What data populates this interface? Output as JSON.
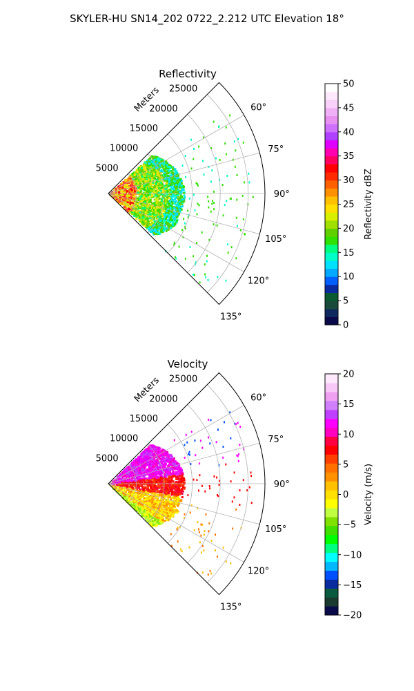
{
  "suptitle": "SKYLER-HU  SN14_202  0722_2.212 UTC Elevation 18°",
  "chart_data": [
    {
      "type": "ppi-sector",
      "title": "Reflectivity",
      "radial_label": "Meters",
      "radial_ticks": [
        "5000",
        "10000",
        "15000",
        "20000",
        "25000"
      ],
      "r_max": 28000,
      "angle_range": [
        45,
        135
      ],
      "angle_ticks": [
        "60°",
        "75°",
        "90°",
        "105°",
        "120°",
        "135°"
      ],
      "grid": true,
      "colorbar": {
        "label": "Reflectivity dBZ",
        "range": [
          0,
          50
        ],
        "ticks": [
          "0",
          "5",
          "10",
          "15",
          "20",
          "25",
          "30",
          "35",
          "40",
          "45",
          "50"
        ],
        "colors": [
          "#0a0a4a",
          "#102a60",
          "#1a4a3a",
          "#0a5a30",
          "#0a2aa0",
          "#0060ff",
          "#00a8ff",
          "#00e0ff",
          "#00ffc8",
          "#00ff80",
          "#30e000",
          "#60d000",
          "#a0e000",
          "#d8ef00",
          "#ffe000",
          "#ffc000",
          "#ff9000",
          "#ff6000",
          "#ff2a00",
          "#ff0000",
          "#ff0060",
          "#ff00b0",
          "#e000ff",
          "#b040ff",
          "#d070ff",
          "#e890f0",
          "#f0b0f8",
          "#f8d0fa",
          "#fde8fd",
          "#ffffff"
        ]
      },
      "echo": {
        "r_min": 0,
        "r_max": 13500,
        "core_max": 5000,
        "palette_core": [
          "#ffe000",
          "#d8ef00",
          "#ff9000",
          "#ff0000",
          "#ff4040"
        ],
        "palette_mid": [
          "#60d000",
          "#a0e000",
          "#30e000",
          "#d8ef00",
          "#00ff80",
          "#ffe000"
        ],
        "palette_outer": [
          "#30e000",
          "#00ffc8",
          "#60d000",
          "#00e0ff"
        ]
      }
    },
    {
      "type": "ppi-sector",
      "title": "Velocity",
      "radial_label": "Meters",
      "radial_ticks": [
        "5000",
        "10000",
        "15000",
        "20000",
        "25000"
      ],
      "r_max": 28000,
      "angle_range": [
        45,
        135
      ],
      "angle_ticks": [
        "60°",
        "75°",
        "90°",
        "105°",
        "120°",
        "135°"
      ],
      "grid": true,
      "colorbar": {
        "label": "Velocity (m/s)",
        "range": [
          -20,
          20
        ],
        "ticks": [
          "−20",
          "−15",
          "−10",
          "−5",
          "0",
          "5",
          "10",
          "15",
          "20"
        ],
        "colors": [
          "#0a0a4a",
          "#1a3a30",
          "#0a5a40",
          "#0a2aa0",
          "#0050ff",
          "#00b8ff",
          "#00ffff",
          "#00ff80",
          "#00ff00",
          "#40e000",
          "#80e000",
          "#c0ff40",
          "#ffff00",
          "#ffe000",
          "#ffc000",
          "#ff9000",
          "#ff7000",
          "#ff4000",
          "#ff0000",
          "#ff0040",
          "#ff00c0",
          "#ff00ff",
          "#c040ff",
          "#d080ff",
          "#f0a0f0",
          "#f8c8f8",
          "#fde8fd"
        ]
      },
      "echo": {
        "r_min": 0,
        "r_max": 13500,
        "core_max": 5000,
        "palette_north": [
          "#ff00ff",
          "#e000ff",
          "#ff00c0",
          "#c040ff"
        ],
        "palette_center": [
          "#ff0000",
          "#ff2000",
          "#ff4000",
          "#ff0040"
        ],
        "palette_south": [
          "#ffc000",
          "#ff9000",
          "#ffe000",
          "#ffff00"
        ],
        "palette_edge": [
          "#c0ff40",
          "#80e000",
          "#ffff00"
        ]
      }
    }
  ]
}
